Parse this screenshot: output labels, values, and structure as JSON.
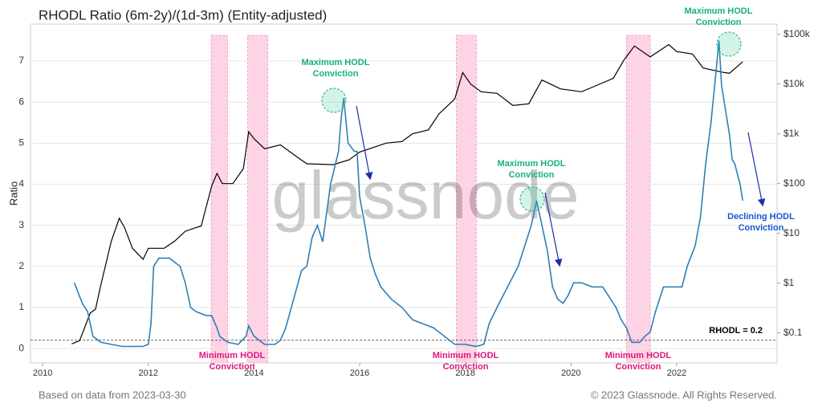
{
  "chart_data": {
    "type": "line",
    "title": "RHODL Ratio (6m-2y)/(1d-3m) (Entity-adjusted)",
    "y_label": "Ratio",
    "watermark": "glassnode",
    "footer_left": "Based on data from 2023-03-30",
    "footer_right": "© 2023 Glassnode. All Rights Reserved.",
    "xlim": [
      2009.77,
      2023.9
    ],
    "xticks": [
      2010,
      2012,
      2014,
      2016,
      2018,
      2020,
      2022
    ],
    "ylim": [
      -0.35,
      7.9
    ],
    "yticks": [
      0,
      1,
      2,
      3,
      4,
      5,
      6,
      7
    ],
    "y2lim": [
      0.025,
      160000
    ],
    "y2_log": true,
    "y2ticks": [
      {
        "value": 0.1,
        "label": "$0.1"
      },
      {
        "value": 1,
        "label": "$1"
      },
      {
        "value": 10,
        "label": "$10"
      },
      {
        "value": 100,
        "label": "$100"
      },
      {
        "value": 1000,
        "label": "$1k"
      },
      {
        "value": 10000,
        "label": "$10k"
      },
      {
        "value": 100000,
        "label": "$100k"
      }
    ],
    "grid": true,
    "threshold": {
      "value": 0.2,
      "label": "RHODL = 0.2"
    },
    "shaded_ranges": [
      [
        2013.19,
        2013.5
      ],
      [
        2013.88,
        2014.26
      ],
      [
        2017.83,
        2018.21
      ],
      [
        2021.05,
        2021.5
      ]
    ],
    "annotations": [
      {
        "lines": [
          "Maximum HODL",
          "Conviction"
        ]
      },
      {
        "lines": [
          "Maximum HODL",
          "Conviction"
        ]
      },
      {
        "lines": [
          "Maximum HODL",
          "Conviction"
        ]
      },
      {
        "lines": [
          "Declining HODL",
          "Conviction"
        ]
      },
      {
        "lines": [
          "Minimum HODL",
          "Conviction"
        ]
      },
      {
        "lines": [
          "Minimum HODL",
          "Conviction"
        ]
      },
      {
        "lines": [
          "Minimum HODL",
          "Conviction"
        ]
      }
    ],
    "series": [
      {
        "color": "#2f7fb5",
        "x": [
          2010.6,
          2010.75,
          2010.85,
          2010.95,
          2011.1,
          2011.3,
          2011.5,
          2011.9,
          2012.0,
          2012.05,
          2012.1,
          2012.2,
          2012.4,
          2012.6,
          2012.7,
          2012.8,
          2012.9,
          2013.1,
          2013.2,
          2013.3,
          2013.35,
          2013.5,
          2013.7,
          2013.85,
          2013.9,
          2014.0,
          2014.2,
          2014.4,
          2014.5,
          2014.6,
          2014.75,
          2014.9,
          2015.0,
          2015.1,
          2015.2,
          2015.3,
          2015.45,
          2015.6,
          2015.65,
          2015.7,
          2015.78,
          2015.9,
          2015.95,
          2016.0,
          2016.1,
          2016.2,
          2016.3,
          2016.4,
          2016.6,
          2016.8,
          2017.0,
          2017.2,
          2017.4,
          2017.6,
          2017.8,
          2018.0,
          2018.2,
          2018.35,
          2018.45,
          2018.6,
          2018.8,
          2019.0,
          2019.1,
          2019.25,
          2019.35,
          2019.45,
          2019.55,
          2019.65,
          2019.75,
          2019.85,
          2019.95,
          2020.05,
          2020.2,
          2020.4,
          2020.6,
          2020.75,
          2020.85,
          2020.95,
          2021.05,
          2021.15,
          2021.3,
          2021.4,
          2021.5,
          2021.6,
          2021.75,
          2021.9,
          2022.1,
          2022.2,
          2022.35,
          2022.45,
          2022.55,
          2022.65,
          2022.75,
          2022.8,
          2022.85,
          2022.9,
          2023.0,
          2023.05,
          2023.1,
          2023.2,
          2023.25
        ],
        "values": [
          1.6,
          1.1,
          0.9,
          0.3,
          0.15,
          0.1,
          0.05,
          0.05,
          0.1,
          0.6,
          2.0,
          2.2,
          2.2,
          2.0,
          1.6,
          1.0,
          0.9,
          0.8,
          0.8,
          0.5,
          0.3,
          0.15,
          0.1,
          0.3,
          0.55,
          0.3,
          0.1,
          0.1,
          0.2,
          0.5,
          1.2,
          1.9,
          2.0,
          2.7,
          3.0,
          2.6,
          4.0,
          4.8,
          5.6,
          6.1,
          5.0,
          4.8,
          4.8,
          3.7,
          3.0,
          2.2,
          1.8,
          1.5,
          1.2,
          1.0,
          0.7,
          0.6,
          0.5,
          0.3,
          0.1,
          0.1,
          0.05,
          0.1,
          0.6,
          1.0,
          1.5,
          2.0,
          2.4,
          3.0,
          3.6,
          3.0,
          2.4,
          1.5,
          1.2,
          1.1,
          1.3,
          1.6,
          1.6,
          1.5,
          1.5,
          1.2,
          1.0,
          0.7,
          0.5,
          0.15,
          0.15,
          0.3,
          0.4,
          0.9,
          1.5,
          1.5,
          1.5,
          2.0,
          2.5,
          3.2,
          4.5,
          5.5,
          6.8,
          7.5,
          6.4,
          6.0,
          5.2,
          4.6,
          4.5,
          4.0,
          3.6
        ]
      },
      {
        "color": "#000000",
        "axis": "y2",
        "x": [
          2010.55,
          2010.7,
          2010.9,
          2011.0,
          2011.1,
          2011.3,
          2011.45,
          2011.55,
          2011.7,
          2011.9,
          2012.0,
          2012.3,
          2012.5,
          2012.7,
          2012.9,
          2013.0,
          2013.2,
          2013.3,
          2013.4,
          2013.6,
          2013.8,
          2013.9,
          2014.0,
          2014.2,
          2014.5,
          2014.8,
          2015.0,
          2015.5,
          2015.8,
          2016.0,
          2016.5,
          2016.8,
          2017.0,
          2017.3,
          2017.5,
          2017.8,
          2017.95,
          2018.1,
          2018.3,
          2018.6,
          2018.9,
          2019.2,
          2019.45,
          2019.8,
          2020.2,
          2020.5,
          2020.8,
          2021.0,
          2021.2,
          2021.5,
          2021.85,
          2022.0,
          2022.3,
          2022.5,
          2022.9,
          2023.0,
          2023.25
        ],
        "values": [
          0.06,
          0.07,
          0.25,
          0.3,
          0.9,
          7,
          20,
          13,
          5,
          3,
          5,
          5,
          7,
          11,
          13,
          14,
          90,
          160,
          100,
          100,
          200,
          1100,
          800,
          500,
          600,
          350,
          250,
          240,
          300,
          430,
          650,
          700,
          1000,
          1200,
          2500,
          5000,
          17000,
          10000,
          7000,
          6500,
          3700,
          4000,
          12000,
          8000,
          7000,
          9500,
          13000,
          30000,
          58000,
          35000,
          62000,
          45000,
          40000,
          21000,
          17000,
          16500,
          28000
        ]
      }
    ]
  }
}
